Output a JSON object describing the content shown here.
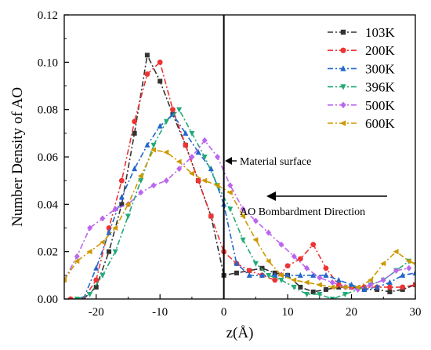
{
  "chart_data": {
    "type": "line",
    "xlabel": "z(Å)",
    "ylabel": "Number Density of AO",
    "xlim": [
      -25,
      30
    ],
    "ylim": [
      0,
      0.12
    ],
    "xticks": [
      "-20",
      "-10",
      "0",
      "10",
      "20",
      "30"
    ],
    "xtick_values": [
      -20,
      -10,
      0,
      10,
      20,
      30
    ],
    "yticks": [
      "0.00",
      "0.02",
      "0.04",
      "0.06",
      "0.08",
      "0.10",
      "0.12"
    ],
    "ytick_values": [
      0,
      0.02,
      0.04,
      0.06,
      0.08,
      0.1,
      0.12
    ],
    "grid": false,
    "legend_position": "top-right",
    "vline_x": 0,
    "annotations": {
      "surface": "Material surface",
      "direction": "AO Bombardment Direction"
    },
    "series": [
      {
        "name": "103K",
        "color": "#333333",
        "marker": "square",
        "x": [
          -22,
          -20,
          -18,
          -16,
          -14,
          -12,
          -10,
          -8,
          -6,
          -4,
          -2,
          0,
          2,
          4,
          6,
          8,
          10,
          12,
          14,
          16,
          18,
          20,
          22,
          24,
          26,
          28,
          30
        ],
        "y": [
          0.0,
          0.005,
          0.02,
          0.04,
          0.07,
          0.103,
          0.092,
          0.078,
          0.065,
          0.05,
          0.035,
          0.01,
          0.011,
          0.012,
          0.013,
          0.011,
          0.01,
          0.005,
          0.003,
          0.004,
          0.005,
          0.005,
          0.004,
          0.004,
          0.003,
          0.004,
          0.006
        ]
      },
      {
        "name": "200K",
        "color": "#ee3333",
        "marker": "circle",
        "x": [
          -24,
          -22,
          -20,
          -18,
          -16,
          -14,
          -12,
          -10,
          -8,
          -6,
          -4,
          -2,
          0,
          2,
          4,
          6,
          8,
          10,
          12,
          14,
          16,
          18,
          20,
          22,
          24,
          26,
          28,
          30
        ],
        "y": [
          0.0,
          0.0,
          0.008,
          0.03,
          0.05,
          0.075,
          0.095,
          0.1,
          0.08,
          0.065,
          0.05,
          0.035,
          0.02,
          0.015,
          0.012,
          0.01,
          0.008,
          0.014,
          0.017,
          0.023,
          0.013,
          0.006,
          0.005,
          0.005,
          0.005,
          0.005,
          0.005,
          0.006
        ]
      },
      {
        "name": "300K",
        "color": "#2266cc",
        "marker": "triangle-up",
        "x": [
          -22,
          -20,
          -18,
          -16,
          -14,
          -12,
          -10,
          -8,
          -6,
          -4,
          -2,
          0,
          2,
          4,
          6,
          8,
          10,
          12,
          14,
          16,
          18,
          20,
          22,
          24,
          26,
          28,
          30
        ],
        "y": [
          0.0,
          0.013,
          0.028,
          0.043,
          0.055,
          0.065,
          0.073,
          0.078,
          0.07,
          0.062,
          0.055,
          0.04,
          0.015,
          0.01,
          0.01,
          0.01,
          0.01,
          0.01,
          0.01,
          0.01,
          0.008,
          0.006,
          0.004,
          0.005,
          0.007,
          0.01,
          0.011
        ]
      },
      {
        "name": "396K",
        "color": "#22aa77",
        "marker": "triangle-down",
        "x": [
          -23,
          -21,
          -19,
          -17,
          -15,
          -13,
          -11,
          -9,
          -7,
          -5,
          -3,
          -1,
          1,
          3,
          5,
          7,
          9,
          11,
          13,
          15,
          17,
          19,
          21,
          23,
          25,
          27,
          29
        ],
        "y": [
          0.0,
          0.002,
          0.01,
          0.02,
          0.035,
          0.05,
          0.065,
          0.075,
          0.08,
          0.07,
          0.06,
          0.048,
          0.038,
          0.025,
          0.015,
          0.01,
          0.008,
          0.005,
          0.002,
          0.002,
          0.0,
          0.002,
          0.004,
          0.006,
          0.008,
          0.012,
          0.016
        ]
      },
      {
        "name": "500K",
        "color": "#bb66ee",
        "marker": "diamond",
        "x": [
          -25,
          -23,
          -21,
          -19,
          -17,
          -15,
          -13,
          -11,
          -9,
          -7,
          -5,
          -3,
          -1,
          1,
          3,
          5,
          7,
          9,
          11,
          13,
          15,
          17,
          19,
          21,
          23,
          25,
          27,
          29
        ],
        "y": [
          0.008,
          0.018,
          0.03,
          0.034,
          0.038,
          0.04,
          0.045,
          0.048,
          0.05,
          0.055,
          0.06,
          0.067,
          0.06,
          0.048,
          0.038,
          0.033,
          0.028,
          0.023,
          0.018,
          0.013,
          0.009,
          0.007,
          0.005,
          0.004,
          0.006,
          0.008,
          0.012,
          0.013
        ]
      },
      {
        "name": "600K",
        "color": "#cc9900",
        "marker": "triangle-left",
        "x": [
          -25,
          -23,
          -21,
          -19,
          -17,
          -15,
          -13,
          -11,
          -9,
          -7,
          -5,
          -3,
          -1,
          1,
          3,
          5,
          7,
          9,
          11,
          13,
          15,
          17,
          19,
          21,
          23,
          25,
          27,
          29,
          30
        ],
        "y": [
          0.008,
          0.016,
          0.02,
          0.024,
          0.03,
          0.04,
          0.052,
          0.063,
          0.062,
          0.058,
          0.053,
          0.05,
          0.048,
          0.045,
          0.035,
          0.025,
          0.016,
          0.01,
          0.008,
          0.007,
          0.006,
          0.005,
          0.005,
          0.005,
          0.008,
          0.015,
          0.02,
          0.016,
          0.015
        ]
      }
    ]
  }
}
